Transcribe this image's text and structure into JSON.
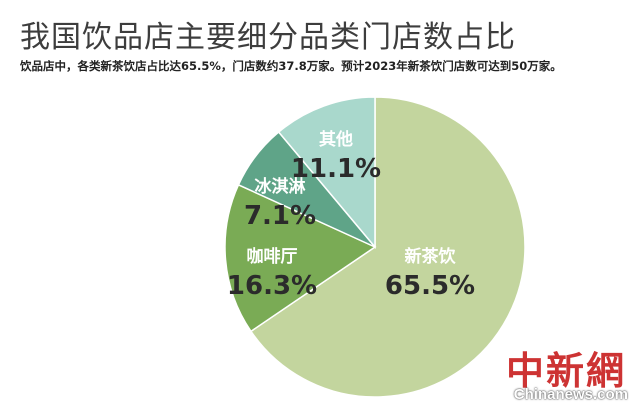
{
  "header": {
    "title": "我国饮品店主要细分品类门店数占比",
    "subtitle": "饮品店中，各类新茶饮店占比达65.5%，门店数约37.8万家。预计2023年新茶饮门店数可达到50万家。"
  },
  "chart_data": {
    "type": "pie",
    "title": "我国饮品店主要细分品类门店数占比",
    "slices": [
      {
        "label": "新茶饮",
        "value": 65.5,
        "display": "65.5%",
        "color": "#c3d59e"
      },
      {
        "label": "咖啡厅",
        "value": 16.3,
        "display": "16.3%",
        "color": "#7aab55"
      },
      {
        "label": "冰淇淋",
        "value": 7.1,
        "display": "7.1%",
        "color": "#5fa488"
      },
      {
        "label": "其他",
        "value": 11.1,
        "display": "11.1%",
        "color": "#a9d8cc"
      }
    ],
    "start_angle": "12 o'clock",
    "direction": "clockwise"
  },
  "watermark": {
    "brand": "中新網",
    "url": "Chinanews.com"
  }
}
